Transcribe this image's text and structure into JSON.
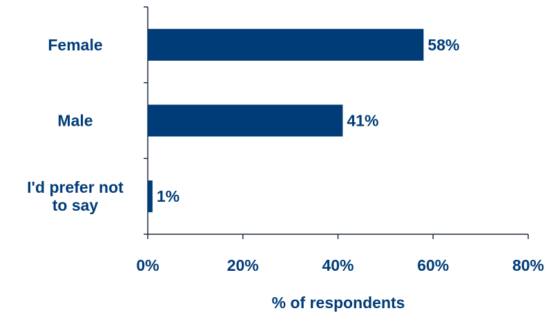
{
  "chart_data": {
    "type": "bar",
    "orientation": "horizontal",
    "categories": [
      {
        "lines": [
          "Female"
        ]
      },
      {
        "lines": [
          "Male"
        ]
      },
      {
        "lines": [
          "I'd prefer not",
          "to say"
        ]
      }
    ],
    "values": [
      58,
      41,
      1
    ],
    "data_labels": [
      "58%",
      "41%",
      "1%"
    ],
    "xlabel": "% of respondents",
    "xlim": [
      0,
      80
    ],
    "xticks": [
      0,
      20,
      40,
      60,
      80
    ],
    "xtick_labels": [
      "0%",
      "20%",
      "40%",
      "60%",
      "80%"
    ],
    "grid": false,
    "legend": "none",
    "colors": {
      "bar": "#003c78",
      "text": "#003c78",
      "axis": "#1f2a44"
    }
  }
}
